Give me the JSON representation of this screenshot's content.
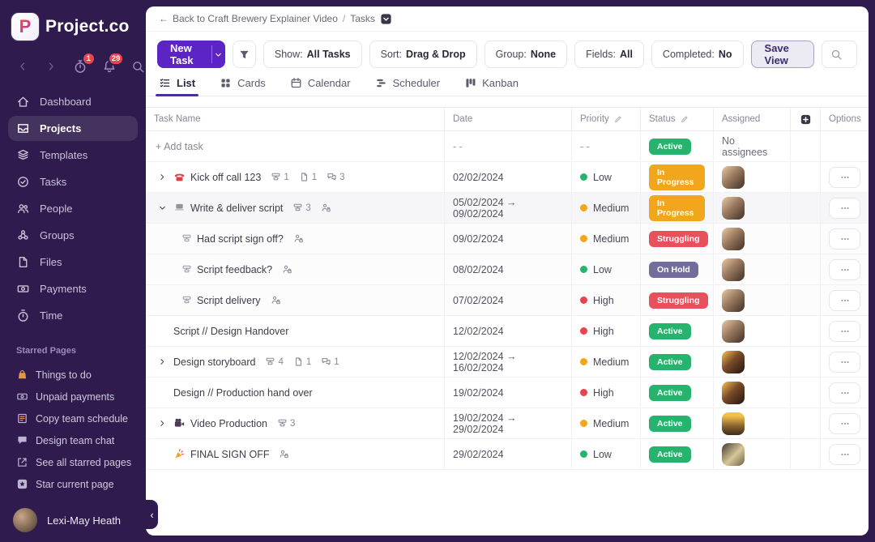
{
  "app": {
    "logo_letter": "P",
    "logo_text": "Project.co"
  },
  "colors": {
    "sidebar_bg": "#2f1b4d",
    "accent_purple": "#5c24c4",
    "badge_red": "#e8464f",
    "status": {
      "Active": "#26b36d",
      "In Progress": "#f2a61c",
      "Struggling": "#e8505b",
      "On Hold": "#716d9d"
    },
    "priority": {
      "low": {
        "label": "Low",
        "color": "#26b36d"
      },
      "medium": {
        "label": "Medium",
        "color": "#f2a61c"
      },
      "high": {
        "label": "High",
        "color": "#e8424c"
      }
    }
  },
  "sidebar": {
    "badges": {
      "timer": "1",
      "notifications": "29"
    },
    "items": [
      {
        "label": "Dashboard",
        "icon": "home-icon"
      },
      {
        "label": "Projects",
        "icon": "projects-icon",
        "active": true
      },
      {
        "label": "Templates",
        "icon": "templates-icon"
      },
      {
        "label": "Tasks",
        "icon": "tasks-icon"
      },
      {
        "label": "People",
        "icon": "people-icon"
      },
      {
        "label": "Groups",
        "icon": "groups-icon"
      },
      {
        "label": "Files",
        "icon": "files-icon"
      },
      {
        "label": "Payments",
        "icon": "payments-icon"
      },
      {
        "label": "Time",
        "icon": "time-icon"
      }
    ],
    "starred_label": "Starred Pages",
    "starred": [
      {
        "label": "Things to do",
        "icon": "bag-icon",
        "color": "#e8963f"
      },
      {
        "label": "Unpaid payments",
        "icon": "banknote-icon"
      },
      {
        "label": "Copy team schedule",
        "icon": "note-icon"
      },
      {
        "label": "Design team chat",
        "icon": "chat-icon"
      },
      {
        "label": "See all starred pages",
        "icon": "external-link-icon"
      },
      {
        "label": "Star current page",
        "icon": "star-square-icon"
      }
    ],
    "user": {
      "name": "Lexi-May Heath"
    }
  },
  "breadcrumb": {
    "back_label": "Back to Craft Brewery Explainer Video",
    "separator": "/",
    "current": "Tasks"
  },
  "toolbar": {
    "new_task_label": "New Task",
    "pills": [
      {
        "prefix": "Show:",
        "value": "All Tasks"
      },
      {
        "prefix": "Sort:",
        "value": "Drag & Drop"
      },
      {
        "prefix": "Group:",
        "value": "None"
      },
      {
        "prefix": "Fields:",
        "value": "All"
      },
      {
        "prefix": "Completed:",
        "value": "No"
      }
    ],
    "save_view_label": "Save View",
    "search_placeholder": "Search tasks..."
  },
  "tabs": [
    {
      "label": "List",
      "icon": "list-tab-icon",
      "active": true
    },
    {
      "label": "Cards",
      "icon": "cards-tab-icon"
    },
    {
      "label": "Calendar",
      "icon": "calendar-tab-icon"
    },
    {
      "label": "Scheduler",
      "icon": "scheduler-tab-icon"
    },
    {
      "label": "Kanban",
      "icon": "kanban-tab-icon"
    }
  ],
  "table": {
    "columns": [
      {
        "label": "Task Name"
      },
      {
        "label": "Date"
      },
      {
        "label": "Priority",
        "edit": true
      },
      {
        "label": "Status",
        "edit": true
      },
      {
        "label": "Assigned"
      },
      {
        "icon": "add-column-icon"
      },
      {
        "label": "Options"
      }
    ],
    "rows": [
      {
        "kind": "add",
        "name": "+ Add task",
        "date": "- -",
        "priority_text": "- -",
        "status": "Active",
        "assigned_text": "No assignees"
      },
      {
        "chevron": "right",
        "task_icon": "phone-icon",
        "name": "Kick off call 123",
        "meta": [
          {
            "icon": "subtasks-icon",
            "count": "1"
          },
          {
            "icon": "file-icon",
            "count": "1"
          },
          {
            "icon": "comments-icon",
            "count": "3"
          }
        ],
        "date": "02/02/2024",
        "priority": "low",
        "status": "In Progress",
        "avatar": "av-1"
      },
      {
        "chevron": "down",
        "task_icon": "laptop-icon",
        "name": "Write & deliver script",
        "shaded": true,
        "meta": [
          {
            "icon": "subtasks-icon",
            "count": "3"
          },
          {
            "icon": "assignee-lock-icon"
          }
        ],
        "date": "05/02/2024 → 09/02/2024",
        "priority": "medium",
        "status": "In Progress",
        "avatar": "av-1"
      },
      {
        "sub": true,
        "name": "Had script sign off?",
        "meta": [
          {
            "icon": "assignee-lock-icon"
          }
        ],
        "date": "09/02/2024",
        "priority": "medium",
        "status": "Struggling",
        "avatar": "av-1"
      },
      {
        "sub": true,
        "name": "Script feedback?",
        "meta": [
          {
            "icon": "assignee-lock-icon"
          }
        ],
        "date": "08/02/2024",
        "priority": "low",
        "status": "On Hold",
        "avatar": "av-1"
      },
      {
        "sub": true,
        "name": "Script delivery",
        "meta": [
          {
            "icon": "assignee-lock-icon"
          }
        ],
        "date": "07/02/2024",
        "priority": "high",
        "status": "Struggling",
        "avatar": "av-1"
      },
      {
        "name": "Script // Design Handover",
        "date": "12/02/2024",
        "priority": "high",
        "status": "Active",
        "avatar": "av-1"
      },
      {
        "chevron": "right",
        "name": "Design storyboard",
        "meta": [
          {
            "icon": "subtasks-icon",
            "count": "4"
          },
          {
            "icon": "file-icon",
            "count": "1"
          },
          {
            "icon": "comments-icon",
            "count": "1"
          }
        ],
        "date": "12/02/2024 → 16/02/2024",
        "priority": "medium",
        "status": "Active",
        "avatar": "av-2"
      },
      {
        "name": "Design // Production hand over",
        "date": "19/02/2024",
        "priority": "high",
        "status": "Active",
        "avatar": "av-2"
      },
      {
        "chevron": "right",
        "task_icon": "video-camera-icon",
        "name": "Video Production",
        "meta": [
          {
            "icon": "subtasks-icon",
            "count": "3"
          }
        ],
        "date": "19/02/2024 → 29/02/2024",
        "priority": "medium",
        "status": "Active",
        "avatar": "av-3"
      },
      {
        "task_icon": "party-popper-icon",
        "name": "FINAL SIGN OFF",
        "meta": [
          {
            "icon": "assignee-lock-icon"
          }
        ],
        "date": "29/02/2024",
        "priority": "low",
        "status": "Active",
        "avatar": "av-4"
      }
    ]
  }
}
